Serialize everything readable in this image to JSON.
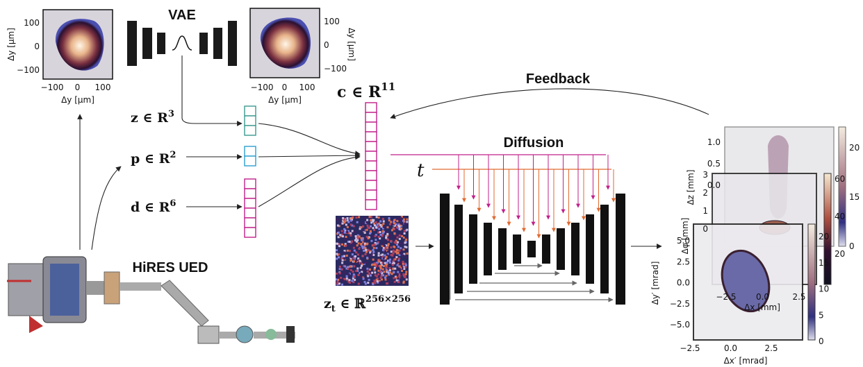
{
  "vae": {
    "title": "VAE"
  },
  "input_plot": {
    "ylabel": "Δy [μm]",
    "xlabel": "Δy [μm]",
    "yticks": [
      "100",
      "0",
      "−100"
    ],
    "xticks": [
      "−100",
      "0",
      "100"
    ]
  },
  "output_plot": {
    "ylabel": "Δy [μm]",
    "xlabel": "Δy [μm]",
    "yticks": [
      "100",
      "0",
      "−100"
    ],
    "xticks": [
      "−100",
      "0",
      "100"
    ]
  },
  "latents": {
    "z": {
      "base": "z ∈ R",
      "sup": "3"
    },
    "p": {
      "base": "p ∈ R",
      "sup": "2"
    },
    "d": {
      "base": "d ∈ R",
      "sup": "6"
    },
    "c": {
      "base": "c ∈ R",
      "sup": "11"
    }
  },
  "diffusion": {
    "title": "Diffusion",
    "t": "t",
    "noise": {
      "base": "z",
      "sub": "t",
      "rest": " ∈ ℝ",
      "sup": "256×256"
    }
  },
  "feedback": "Feedback",
  "machine": "HiRES UED",
  "outputs": [
    {
      "ylabel": "Δz [mm]",
      "yticks": [
        "1.0",
        "0.5",
        "0.0"
      ],
      "cbar_ticks": [
        "20",
        "15",
        "0"
      ]
    },
    {
      "ylabel": "Δφ [mm]",
      "xlabel": "Δx [mm]",
      "yticks": [
        "3",
        "2",
        "1",
        "0"
      ],
      "xticks": [
        "−2.5",
        "0.0",
        "2.5"
      ],
      "cbar_ticks": [
        "60",
        "40",
        "20"
      ]
    },
    {
      "ylabel": "Δy′ [mrad]",
      "xlabel": "Δx′ [mrad]",
      "yticks": [
        "5.0",
        "2.5",
        "0.0",
        "−2.5",
        "−5.0"
      ],
      "xticks": [
        "−2.5",
        "0.0",
        "2.5"
      ],
      "cbar_ticks": [
        "20",
        "15",
        "10",
        "5",
        "0"
      ]
    }
  ]
}
